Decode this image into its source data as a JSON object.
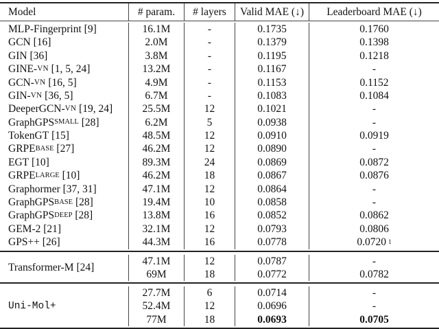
{
  "header": {
    "model": "Model",
    "params": "# param.",
    "layers": "# layers",
    "valid": "Valid MAE (↓)",
    "leaderboard": "Leaderboard MAE (↓)"
  },
  "sections": [
    {
      "rows": [
        {
          "model": {
            "base": "MLP-Fingerprint",
            "ref": "[9]"
          },
          "params": "16.1M",
          "layers": "-",
          "valid": "0.1735",
          "leaderboard": "0.1760"
        },
        {
          "model": {
            "base": "GCN",
            "ref": "[16]"
          },
          "params": "2.0M",
          "layers": "-",
          "valid": "0.1379",
          "leaderboard": "0.1398"
        },
        {
          "model": {
            "base": "GIN",
            "ref": "[36]"
          },
          "params": "3.8M",
          "layers": "-",
          "valid": "0.1195",
          "leaderboard": "0.1218"
        },
        {
          "model": {
            "base": "GINE-",
            "sc": "VN",
            "ref": "[1, 5, 24]"
          },
          "params": "13.2M",
          "layers": "-",
          "valid": "0.1167",
          "leaderboard": "-"
        },
        {
          "model": {
            "base": "GCN-",
            "sc": "VN",
            "ref": "[16, 5]"
          },
          "params": "4.9M",
          "layers": "-",
          "valid": "0.1153",
          "leaderboard": "0.1152"
        },
        {
          "model": {
            "base": "GIN-",
            "sc": "VN",
            "ref": "[36, 5]"
          },
          "params": "6.7M",
          "layers": "-",
          "valid": "0.1083",
          "leaderboard": "0.1084"
        },
        {
          "model": {
            "base": "DeeperGCN-",
            "sc": "VN",
            "ref": "[19, 24]"
          },
          "params": "25.5M",
          "layers": "12",
          "valid": "0.1021",
          "leaderboard": "-"
        },
        {
          "model": {
            "base": "GraphGPS",
            "sub": "SMALL",
            "ref": "[28]"
          },
          "params": "6.2M",
          "layers": "5",
          "valid": "0.0938",
          "leaderboard": "-"
        },
        {
          "model": {
            "base": "TokenGT",
            "ref": "[15]"
          },
          "params": "48.5M",
          "layers": "12",
          "valid": "0.0910",
          "leaderboard": "0.0919"
        },
        {
          "model": {
            "base": "GRPE",
            "sub": "BASE",
            "ref": "[27]"
          },
          "params": "46.2M",
          "layers": "12",
          "valid": "0.0890",
          "leaderboard": "-"
        },
        {
          "model": {
            "base": "EGT",
            "ref": "[10]"
          },
          "params": "89.3M",
          "layers": "24",
          "valid": "0.0869",
          "leaderboard": "0.0872"
        },
        {
          "model": {
            "base": "GRPE",
            "sub": "LARGE",
            "ref": "[10]"
          },
          "params": "46.2M",
          "layers": "18",
          "valid": "0.0867",
          "leaderboard": "0.0876"
        },
        {
          "model": {
            "base": "Graphormer",
            "ref": "[37, 31]"
          },
          "params": "47.1M",
          "layers": "12",
          "valid": "0.0864",
          "leaderboard": "-"
        },
        {
          "model": {
            "base": "GraphGPS",
            "sub": "BASE",
            "ref": "[28]"
          },
          "params": "19.4M",
          "layers": "10",
          "valid": "0.0858",
          "leaderboard": "-"
        },
        {
          "model": {
            "base": "GraphGPS",
            "sub": "DEEP",
            "ref": "[28]"
          },
          "params": "13.8M",
          "layers": "16",
          "valid": "0.0852",
          "leaderboard": "0.0862"
        },
        {
          "model": {
            "base": "GEM-2",
            "ref": "[21]"
          },
          "params": "32.1M",
          "layers": "12",
          "valid": "0.0793",
          "leaderboard": "0.0806"
        },
        {
          "model": {
            "base": "GPS++",
            "ref": "[26]"
          },
          "params": "44.3M",
          "layers": "16",
          "valid": "0.0778",
          "leaderboard": "0.0720",
          "leaderboard_note": "1"
        }
      ]
    },
    {
      "group_model": {
        "base": "Transformer-M",
        "ref": "[24]"
      },
      "rows": [
        {
          "params": "47.1M",
          "layers": "12",
          "valid": "0.0787",
          "leaderboard": "-"
        },
        {
          "params": "69M",
          "layers": "18",
          "valid": "0.0772",
          "leaderboard": "0.0782"
        }
      ]
    },
    {
      "group_model": {
        "base": "Uni-Mol+",
        "mono": true
      },
      "rows": [
        {
          "params": "27.7M",
          "layers": "6",
          "valid": "0.0714",
          "leaderboard": "-"
        },
        {
          "params": "52.4M",
          "layers": "12",
          "valid": "0.0696",
          "leaderboard": "-"
        },
        {
          "params": "77M",
          "layers": "18",
          "valid": "0.0693",
          "leaderboard": "0.0705",
          "bold": true
        }
      ]
    }
  ]
}
